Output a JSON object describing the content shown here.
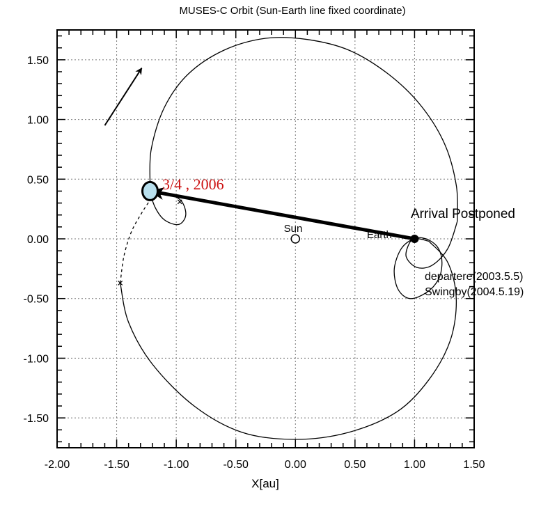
{
  "chart_data": {
    "type": "line",
    "title": "MUSES-C Orbit (Sun-Earth line fixed coordinate)",
    "xlabel": "X[au]",
    "ylabel": "",
    "xlim": [
      -2.0,
      1.5
    ],
    "ylim": [
      -1.75,
      1.75
    ],
    "x_ticks": [
      "-2.00",
      "-1.50",
      "-1.00",
      "-0.50",
      "0.00",
      "0.50",
      "1.00",
      "1.50"
    ],
    "y_ticks": [
      "-1.50",
      "-1.00",
      "-0.50",
      "0.00",
      "0.50",
      "1.00",
      "1.50"
    ],
    "grid": true,
    "series": [
      {
        "kind": "large-loop",
        "points": [
          [
            -1.22,
            0.45
          ],
          [
            -1.21,
            0.75
          ],
          [
            -1.1,
            1.1
          ],
          [
            -0.9,
            1.38
          ],
          [
            -0.6,
            1.58
          ],
          [
            -0.25,
            1.68
          ],
          [
            0.1,
            1.67
          ],
          [
            0.45,
            1.58
          ],
          [
            0.78,
            1.38
          ],
          [
            1.05,
            1.12
          ],
          [
            1.25,
            0.8
          ],
          [
            1.35,
            0.45
          ],
          [
            1.36,
            0.15
          ]
        ]
      },
      {
        "kind": "swingby-loops-near-earth",
        "points": [
          [
            1.36,
            0.15
          ],
          [
            1.28,
            -0.08
          ],
          [
            1.15,
            -0.22
          ],
          [
            1.02,
            -0.24
          ],
          [
            0.93,
            -0.15
          ],
          [
            0.96,
            -0.03
          ],
          [
            1.02,
            0.01
          ],
          [
            1.12,
            -0.01
          ],
          [
            1.2,
            -0.08
          ],
          [
            1.23,
            -0.2
          ],
          [
            1.2,
            -0.34
          ],
          [
            1.1,
            -0.45
          ],
          [
            0.96,
            -0.5
          ],
          [
            0.86,
            -0.42
          ],
          [
            0.83,
            -0.25
          ],
          [
            0.89,
            -0.08
          ],
          [
            1.0,
            0.0
          ],
          [
            1.12,
            -0.02
          ]
        ]
      },
      {
        "kind": "transfer-orbit",
        "points": [
          [
            1.12,
            -0.02
          ],
          [
            1.28,
            -0.2
          ],
          [
            1.35,
            -0.5
          ],
          [
            1.3,
            -0.85
          ],
          [
            1.12,
            -1.18
          ],
          [
            0.85,
            -1.45
          ],
          [
            0.45,
            -1.62
          ],
          [
            0.0,
            -1.68
          ],
          [
            -0.45,
            -1.62
          ],
          [
            -0.85,
            -1.4
          ],
          [
            -1.2,
            -1.05
          ],
          [
            -1.4,
            -0.7
          ],
          [
            -1.47,
            -0.37
          ]
        ]
      },
      {
        "kind": "postponed-dashed",
        "dashed": true,
        "points": [
          [
            -1.47,
            -0.37
          ],
          [
            -1.44,
            -0.15
          ],
          [
            -1.38,
            0.05
          ],
          [
            -1.3,
            0.2
          ],
          [
            -1.22,
            0.32
          ],
          [
            -1.15,
            0.38
          ]
        ]
      },
      {
        "kind": "small-loop-near-itokawa",
        "points": [
          [
            -1.24,
            0.45
          ],
          [
            -1.18,
            0.27
          ],
          [
            -1.1,
            0.16
          ],
          [
            -0.98,
            0.12
          ],
          [
            -0.92,
            0.2
          ],
          [
            -0.96,
            0.32
          ],
          [
            -1.08,
            0.38
          ],
          [
            -1.16,
            0.36
          ]
        ]
      }
    ],
    "markers": [
      {
        "label": "Sun",
        "x": 0.0,
        "y": 0.0,
        "shape": "open-circle"
      },
      {
        "label": "Earth",
        "x": 1.0,
        "y": 0.0,
        "shape": "filled-circle"
      },
      {
        "label": "",
        "x": -1.22,
        "y": 0.4,
        "shape": "large-blue-circle"
      }
    ],
    "cross_markers": [
      [
        -1.47,
        -0.37
      ],
      [
        -0.97,
        0.31
      ]
    ],
    "annotations": {
      "arrival_date": "3/4 , 2006",
      "arrival_postponed": "Arrival Postponed",
      "departure": "departere(2003.5.5)",
      "swingby": "Swingby(2004.5.19)"
    },
    "arrows": [
      {
        "from": [
          1.0,
          0.0
        ],
        "to": [
          -1.22,
          0.4
        ],
        "bold": true
      },
      {
        "from": [
          -1.6,
          0.95
        ],
        "to": [
          -1.29,
          1.43
        ],
        "bold": false
      },
      {
        "from": [
          -1.2,
          0.36
        ],
        "to": [
          -1.12,
          0.41
        ],
        "bold": false,
        "note": "small arrowhead"
      }
    ]
  }
}
